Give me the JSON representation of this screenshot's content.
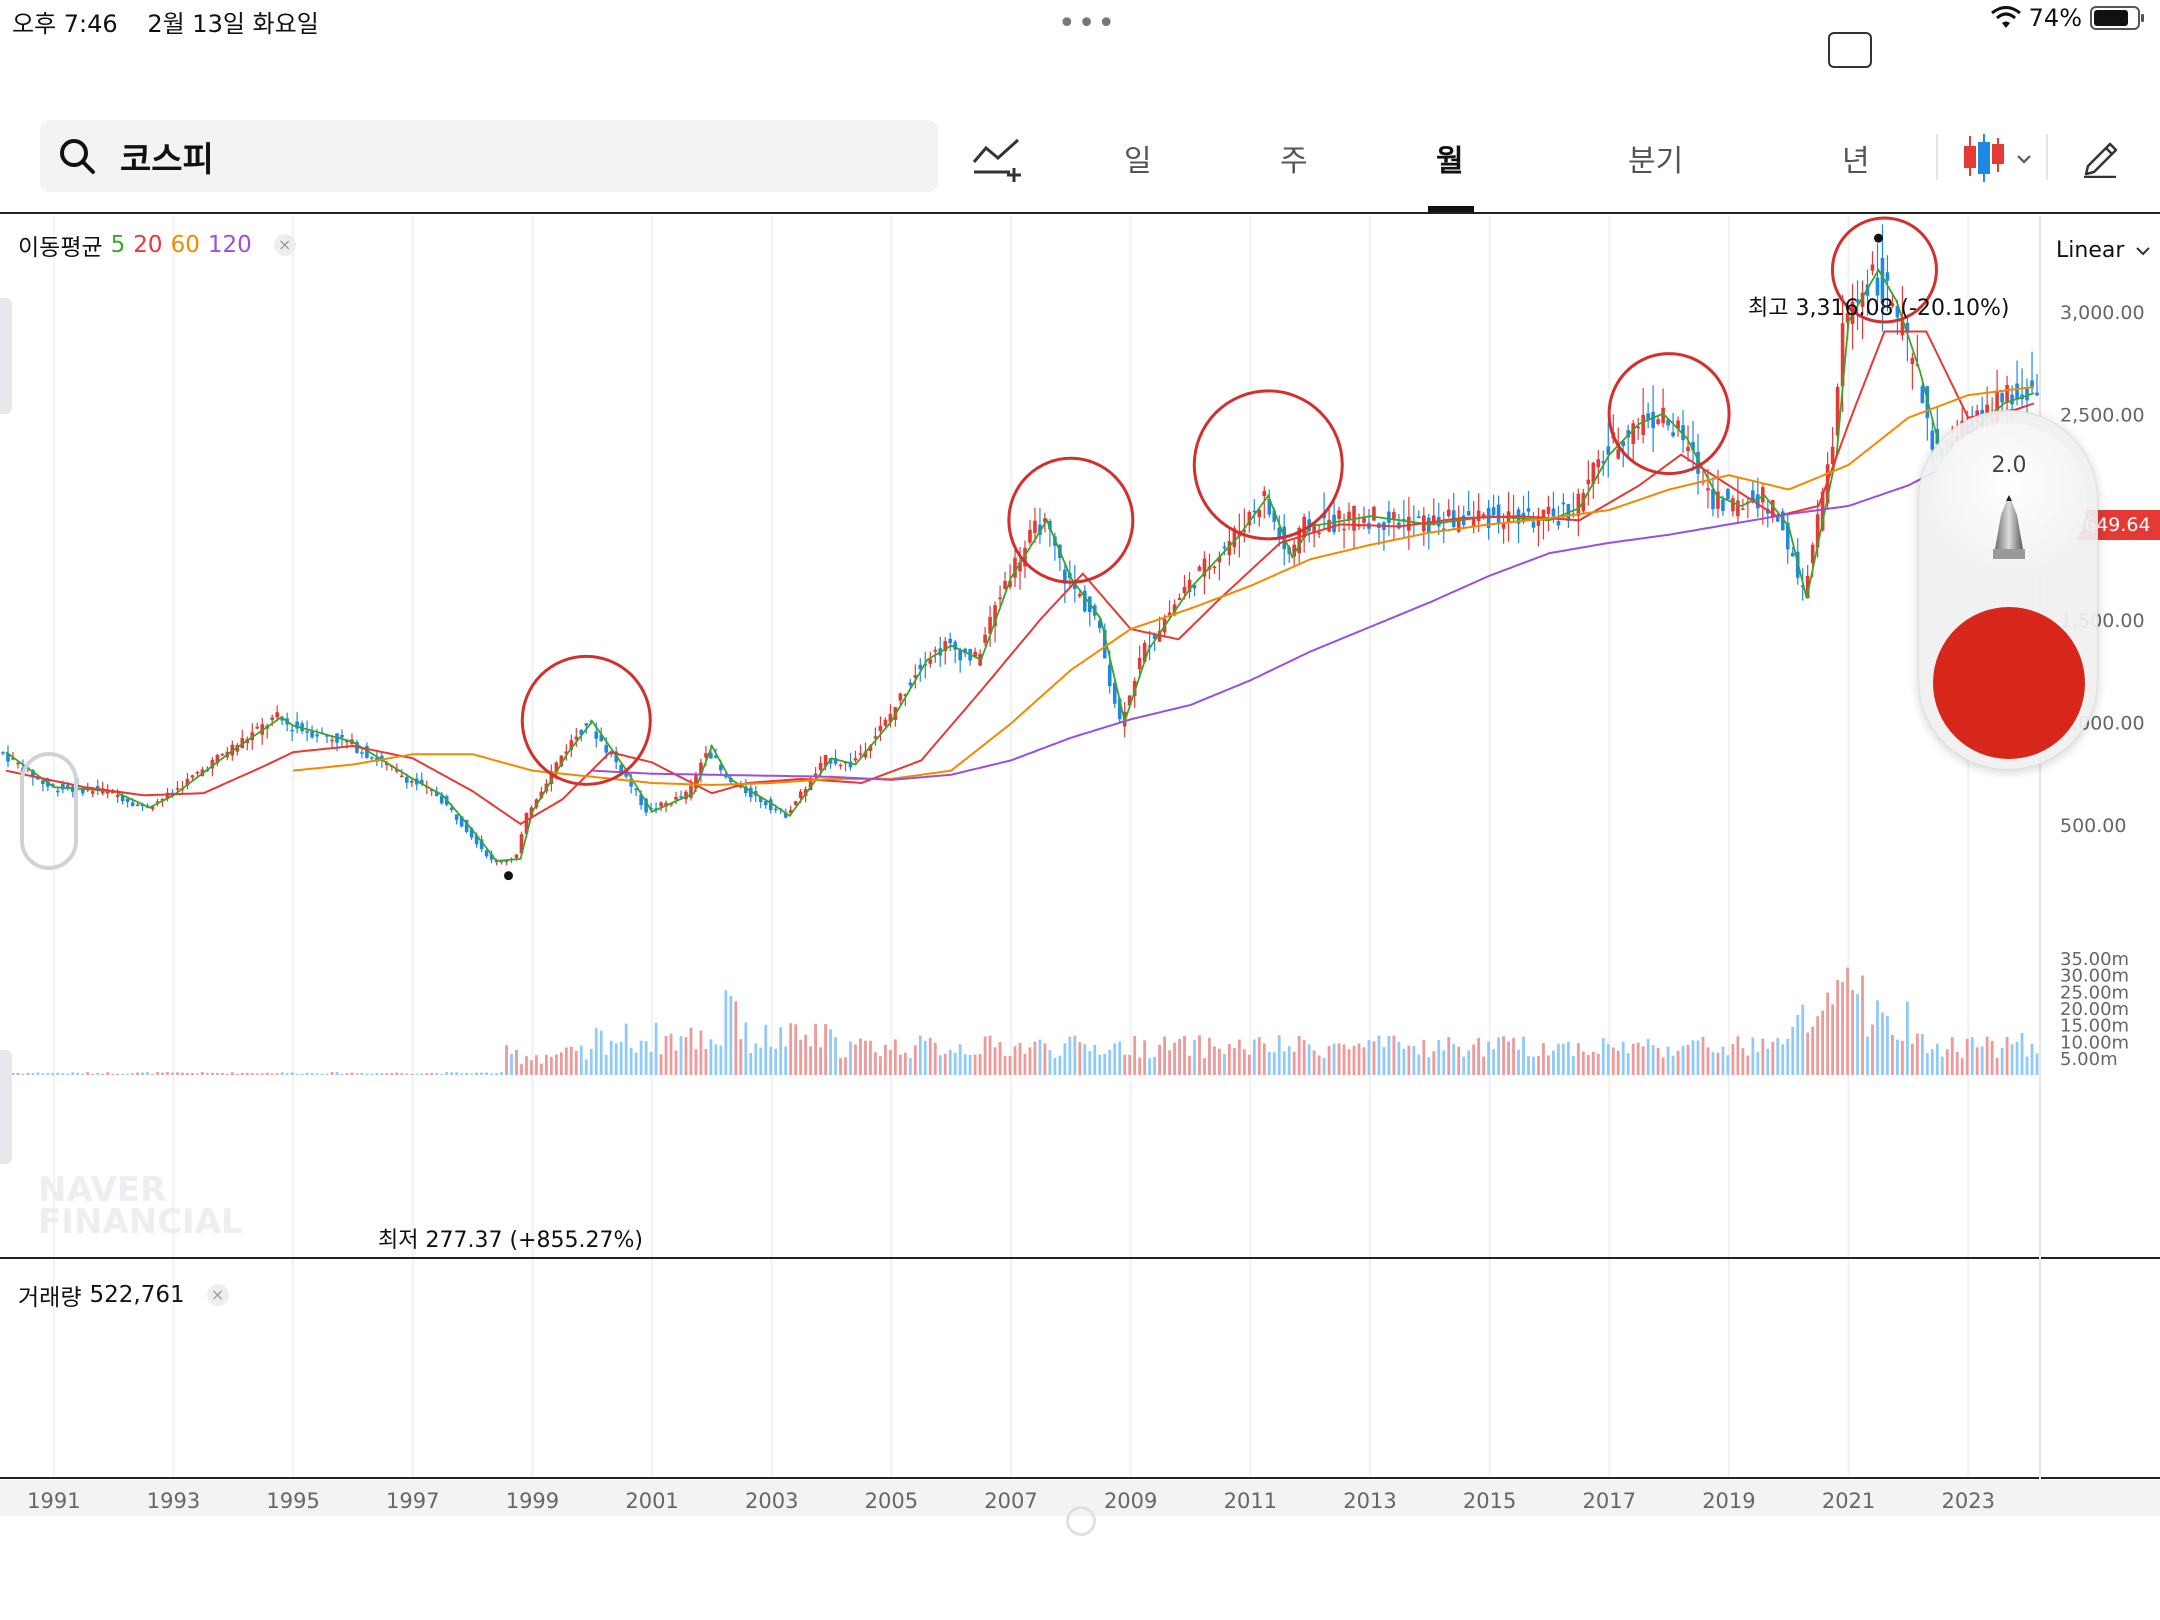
{
  "status_bar": {
    "time": "오후 7:46",
    "date": "2월 13일 화요일",
    "battery": "74%",
    "battery_level": 0.74
  },
  "search": {
    "query": "코스피"
  },
  "tabs": [
    {
      "label": "일"
    },
    {
      "label": "주"
    },
    {
      "label": "월",
      "active": true
    },
    {
      "label": "분기"
    },
    {
      "label": "년"
    }
  ],
  "scale": {
    "label": "Linear"
  },
  "ma_legend": {
    "label": "이동평균",
    "periods": [
      {
        "value": "5",
        "color": "#3aa629"
      },
      {
        "value": "20",
        "color": "#e53935"
      },
      {
        "value": "60",
        "color": "#f08a00"
      },
      {
        "value": "120",
        "color": "#9c4fd9"
      }
    ],
    "close": "×"
  },
  "volume_legend": {
    "label": "거래량",
    "value": "522,761",
    "close": "×"
  },
  "annotations": {
    "high": "최고 3,316.08 (-20.10%)",
    "low": "최저 277.37 (+855.27%)"
  },
  "watermark": [
    "NAVER",
    "FINANCIAL"
  ],
  "current_price": "2,649.64",
  "pen_tool": {
    "size": "2.0"
  },
  "colors": {
    "up": "#e53935",
    "down": "#1e88e5",
    "ma5": "#3aa629",
    "ma20": "#e53935",
    "ma60": "#f08a00",
    "ma120": "#9c4fd9",
    "circle": "#d32f2f"
  },
  "chart_data": {
    "type": "line",
    "title": "",
    "price_axis": {
      "ticks": [
        "500.00",
        "1,000.00",
        "1,500.00",
        "",
        "2,500.00",
        "3,000.00"
      ],
      "tick_values": [
        500,
        1000,
        1500,
        2000,
        2500,
        3000
      ],
      "range": [
        200,
        3500
      ]
    },
    "volume_axis": {
      "ticks": [
        "5.00m",
        "10.00m",
        "15.00m",
        "20.00m",
        "25.00m",
        "30.00m",
        "35.00m"
      ],
      "tick_values": [
        5,
        10,
        15,
        20,
        25,
        30,
        35
      ],
      "range": [
        0,
        36
      ]
    },
    "x_axis": {
      "ticks": [
        "1991",
        "1993",
        "1995",
        "1997",
        "1999",
        "2001",
        "2003",
        "2005",
        "2007",
        "2009",
        "2011",
        "2013",
        "2015",
        "2017",
        "2019",
        "2021",
        "2023"
      ],
      "range": [
        1990.1,
        2024.2
      ]
    },
    "series": [
      {
        "name": "5",
        "x": [
          1990.2,
          1991.0,
          1992.0,
          1992.6,
          1993.0,
          1994.0,
          1994.8,
          1995.0,
          1996.0,
          1997.0,
          1997.5,
          1998.0,
          1998.4,
          1998.8,
          1999.0,
          1999.6,
          2000.0,
          2000.6,
          2001.0,
          2001.7,
          2002.0,
          2002.3,
          2003.0,
          2003.3,
          2004.0,
          2004.4,
          2005.0,
          2005.6,
          2006.0,
          2006.5,
          2007.0,
          2007.6,
          2008.0,
          2008.5,
          2008.9,
          2009.3,
          2010.0,
          2010.8,
          2011.3,
          2011.7,
          2012.0,
          2013.0,
          2014.0,
          2015.0,
          2016.0,
          2016.5,
          2017.0,
          2017.5,
          2017.9,
          2018.3,
          2018.8,
          2019.2,
          2019.6,
          2020.0,
          2020.3,
          2020.8,
          2021.0,
          2021.5,
          2021.8,
          2022.2,
          2022.6,
          2023.0,
          2023.6,
          2024.1
        ],
        "values": [
          850,
          680,
          660,
          580,
          640,
          860,
          1020,
          980,
          900,
          720,
          640,
          470,
          320,
          330,
          560,
          850,
          1000,
          750,
          560,
          650,
          880,
          720,
          600,
          540,
          820,
          790,
          1000,
          1300,
          1370,
          1300,
          1700,
          1980,
          1700,
          1500,
          1000,
          1350,
          1650,
          1900,
          2100,
          1800,
          1950,
          2000,
          1960,
          2000,
          1980,
          2040,
          2300,
          2450,
          2500,
          2380,
          2100,
          2050,
          2100,
          1950,
          1600,
          2300,
          2950,
          3200,
          3050,
          2700,
          2250,
          2400,
          2550,
          2600
        ]
      },
      {
        "name": "20",
        "x": [
          1990.2,
          1991.5,
          1992.5,
          1993.5,
          1994.5,
          1995.0,
          1996.0,
          1997.0,
          1998.0,
          1998.8,
          1999.5,
          2000.3,
          2001.0,
          2002.0,
          2002.6,
          2003.5,
          2004.5,
          2005.5,
          2006.5,
          2007.5,
          2008.2,
          2009.0,
          2009.8,
          2010.5,
          2011.5,
          2012.5,
          2013.5,
          2014.5,
          2015.5,
          2016.5,
          2017.5,
          2018.2,
          2019.0,
          2019.8,
          2020.5,
          2021.0,
          2021.6,
          2022.3,
          2023.0,
          2023.8,
          2024.1
        ],
        "values": [
          760,
          680,
          640,
          650,
          780,
          850,
          880,
          820,
          660,
          500,
          620,
          850,
          800,
          650,
          700,
          720,
          700,
          810,
          1150,
          1500,
          1720,
          1450,
          1400,
          1600,
          1870,
          1960,
          1950,
          1990,
          2000,
          1980,
          2150,
          2300,
          2150,
          2000,
          2050,
          2450,
          2900,
          2900,
          2480,
          2520,
          2550
        ]
      },
      {
        "name": "60",
        "x": [
          1995.0,
          1996.0,
          1997.0,
          1998.0,
          1999.0,
          2000.0,
          2001.0,
          2002.0,
          2003.0,
          2004.0,
          2005.0,
          2006.0,
          2007.0,
          2008.0,
          2009.0,
          2010.0,
          2011.0,
          2012.0,
          2013.0,
          2014.0,
          2015.0,
          2016.0,
          2017.0,
          2018.0,
          2019.0,
          2020.0,
          2021.0,
          2022.0,
          2023.0,
          2024.1
        ],
        "values": [
          760,
          790,
          840,
          840,
          760,
          730,
          700,
          690,
          700,
          720,
          720,
          760,
          990,
          1250,
          1450,
          1550,
          1660,
          1790,
          1860,
          1920,
          1960,
          1990,
          2030,
          2130,
          2200,
          2130,
          2250,
          2480,
          2590,
          2630
        ]
      },
      {
        "name": "120",
        "x": [
          2000.0,
          2001.0,
          2002.0,
          2003.0,
          2004.0,
          2005.0,
          2006.0,
          2007.0,
          2008.0,
          2009.0,
          2010.0,
          2011.0,
          2012.0,
          2013.0,
          2014.0,
          2015.0,
          2016.0,
          2017.0,
          2018.0,
          2019.0,
          2020.0,
          2021.0,
          2022.0,
          2023.0,
          2024.1
        ],
        "values": [
          760,
          745,
          740,
          735,
          730,
          715,
          740,
          810,
          920,
          1010,
          1080,
          1200,
          1340,
          1460,
          1580,
          1710,
          1820,
          1870,
          1910,
          1960,
          2010,
          2050,
          2150,
          2300,
          2400
        ]
      }
    ],
    "markers": [
      {
        "label": "최고",
        "x": 2021.5,
        "value": 3316.08
      },
      {
        "label": "최저",
        "x": 1998.6,
        "value": 277.37
      }
    ],
    "highlight_circles": [
      {
        "x": 1999.9,
        "value": 1005
      },
      {
        "x": 2008.0,
        "value": 1980
      },
      {
        "x": 2011.3,
        "value": 2250
      },
      {
        "x": 2018.0,
        "value": 2500
      },
      {
        "x": 2021.6,
        "value": 3200
      }
    ]
  }
}
